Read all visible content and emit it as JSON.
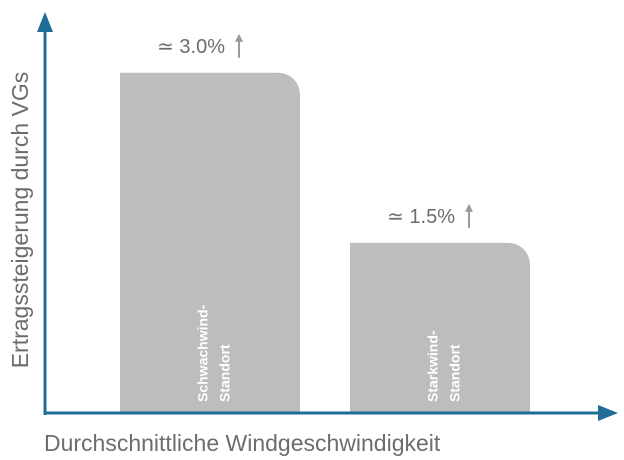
{
  "chart_data": {
    "type": "bar",
    "x_label": "Durchschnittliche Windgeschwindigkeit",
    "y_label": "Ertragssteigerung durch VGs",
    "categories": [
      [
        "Schwachwind-",
        "Standort"
      ],
      [
        "Starkwind-",
        "Standort"
      ]
    ],
    "values": [
      3.0,
      1.5
    ],
    "value_labels": [
      "≃ 3.0%",
      "≃ 1.5%"
    ],
    "color": "#bdbdbd",
    "axis_color": "#1f6c97",
    "ylim": [
      0,
      3.5
    ]
  }
}
